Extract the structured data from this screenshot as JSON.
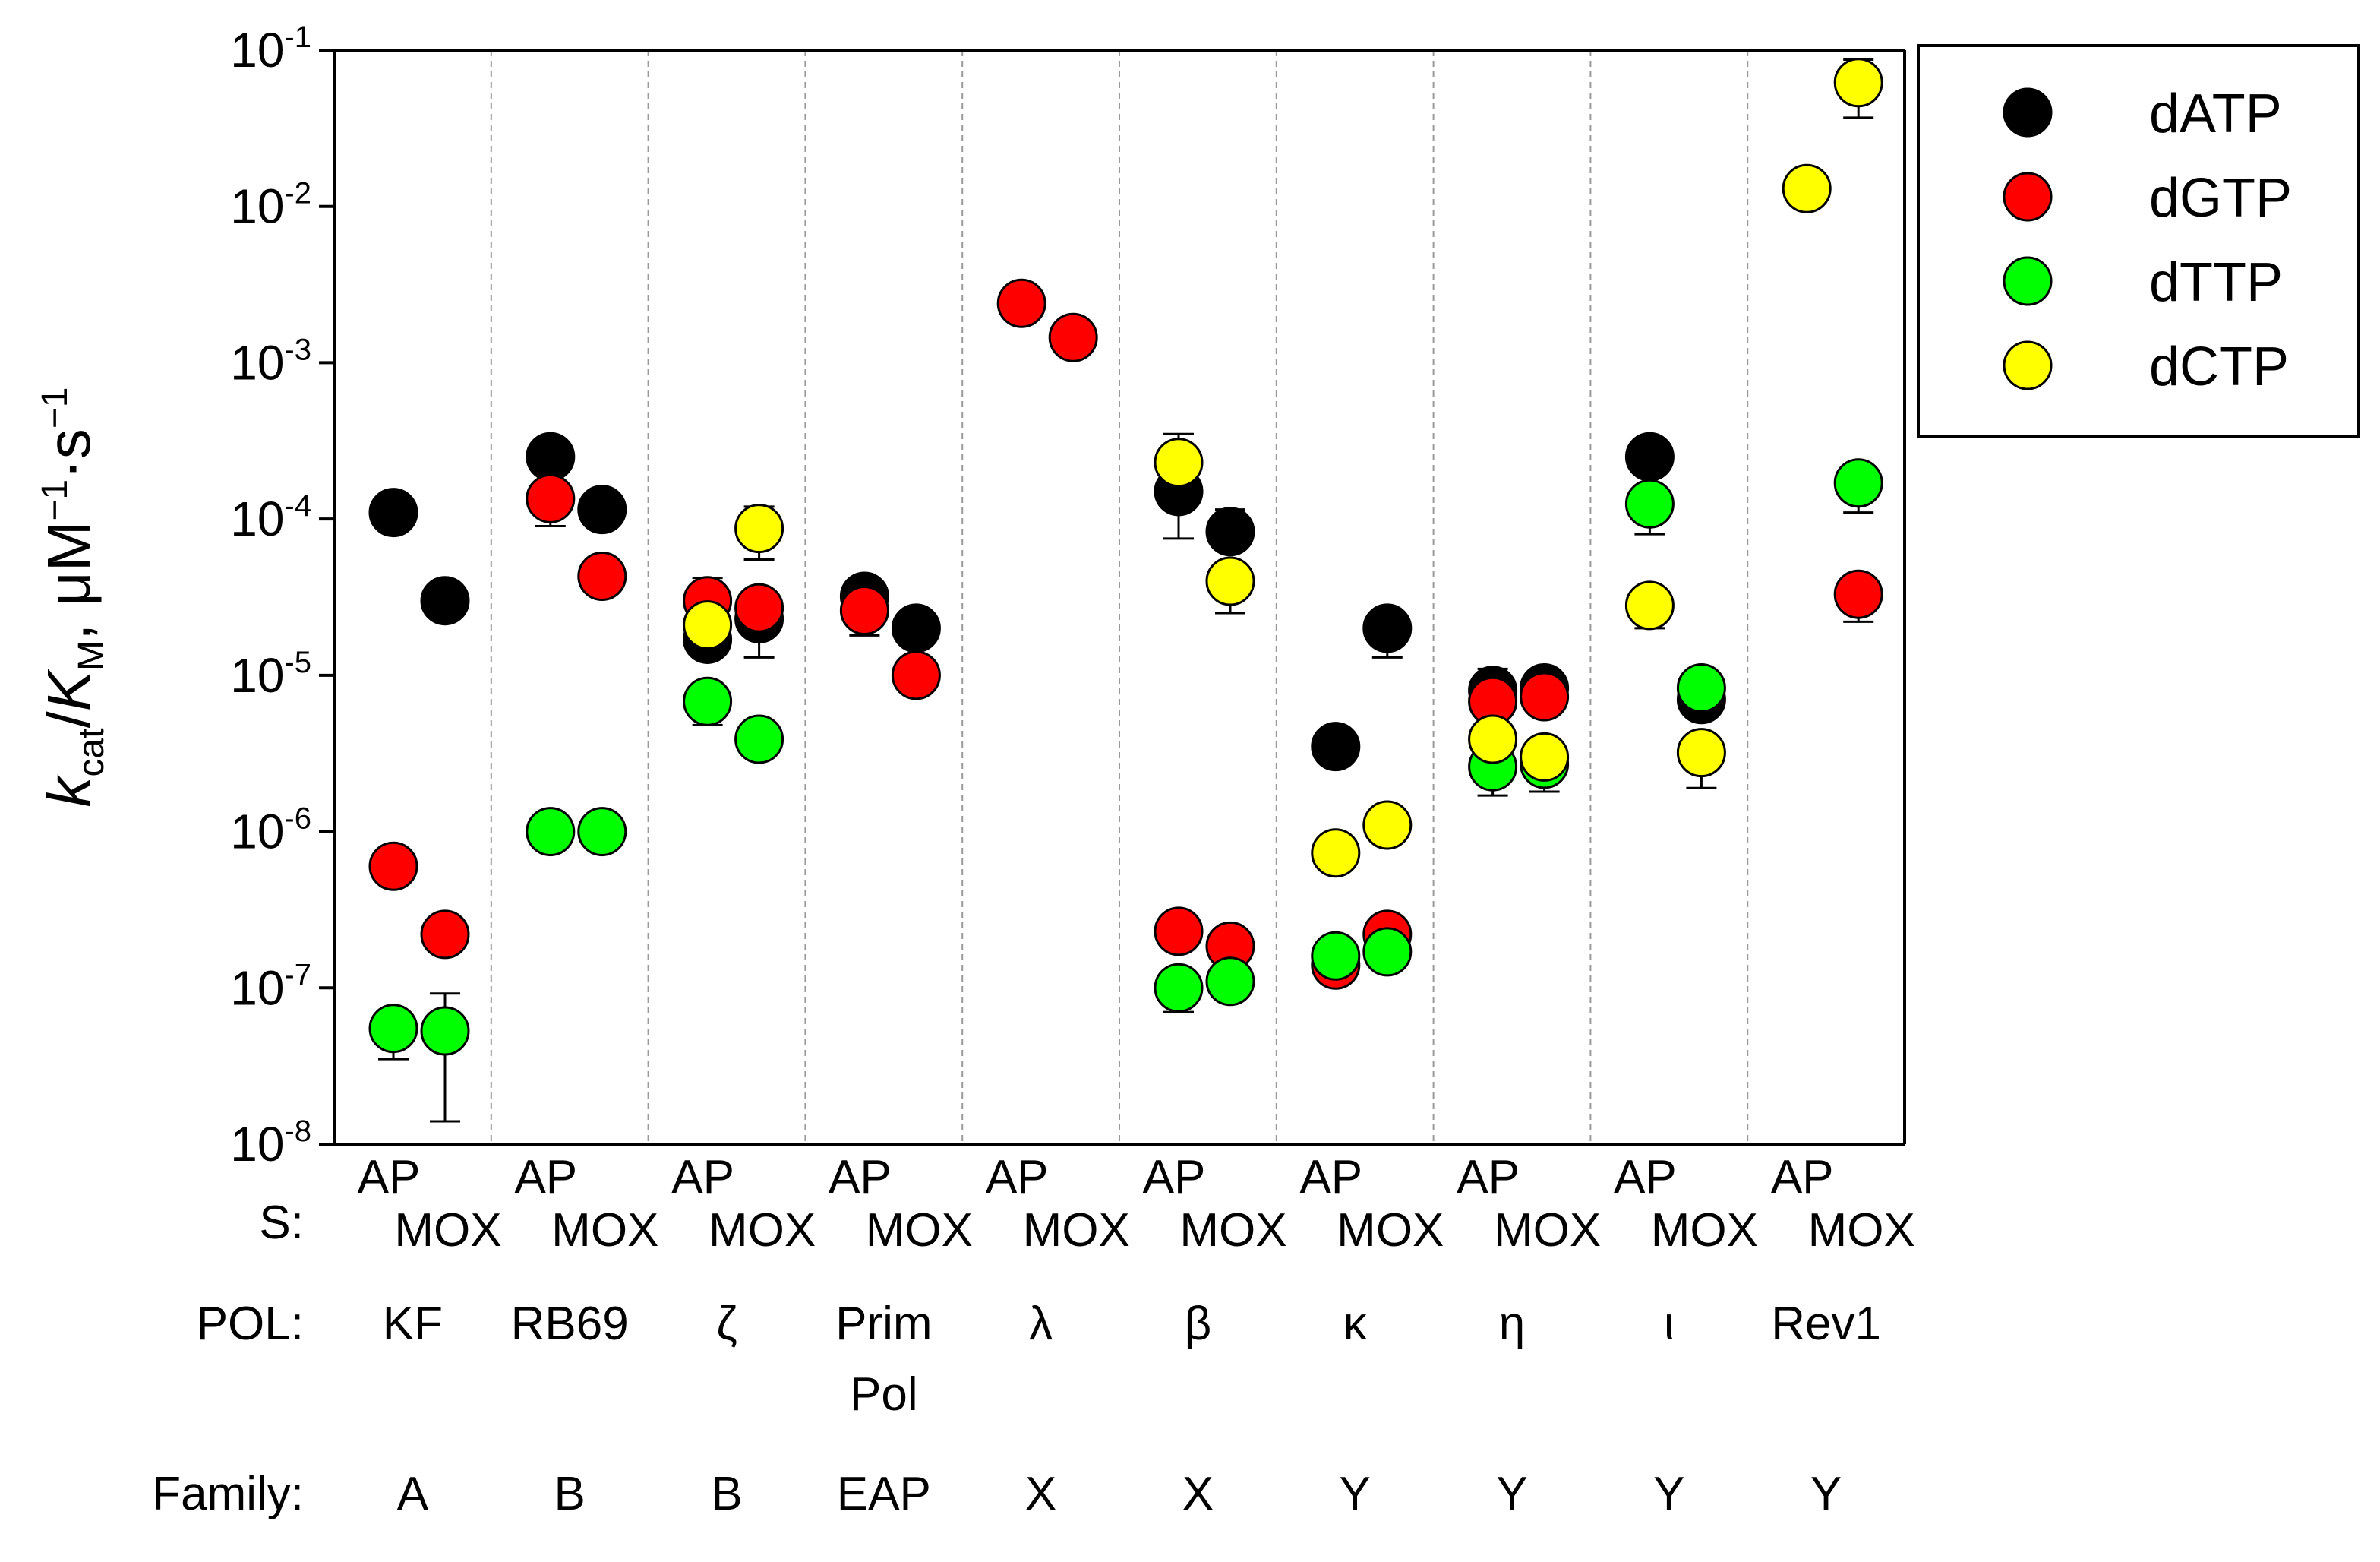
{
  "chart_data": {
    "type": "scatter",
    "yscale": "log",
    "ylim_exponents": [
      -8,
      -1
    ],
    "y_ticks": [
      {
        "base": "10",
        "exp": "-1"
      },
      {
        "base": "10",
        "exp": "-2"
      },
      {
        "base": "10",
        "exp": "-3"
      },
      {
        "base": "10",
        "exp": "-4"
      },
      {
        "base": "10",
        "exp": "-5"
      },
      {
        "base": "10",
        "exp": "-6"
      },
      {
        "base": "10",
        "exp": "-7"
      },
      {
        "base": "10",
        "exp": "-8"
      }
    ],
    "ylabel": {
      "k": "k",
      "k_sub": "cat",
      "slash": "/",
      "K": "K",
      "K_sub": "M",
      "units_prefix": ", μM",
      "exp1": "−1",
      "dot_s": "·s",
      "exp2": "−1"
    },
    "row_labels": {
      "s": "S:",
      "pol": "POL:",
      "family": "Family:"
    },
    "groups": [
      {
        "pol": "KF",
        "pol_line2": "",
        "family": "A",
        "ap": "AP",
        "mox": "MOX"
      },
      {
        "pol": "RB69",
        "pol_line2": "",
        "family": "B",
        "ap": "AP",
        "mox": "MOX"
      },
      {
        "pol": "ζ",
        "pol_line2": "",
        "family": "B",
        "ap": "AP",
        "mox": "MOX"
      },
      {
        "pol": "Prim",
        "pol_line2": "Pol",
        "family": "EAP",
        "ap": "AP",
        "mox": "MOX"
      },
      {
        "pol": "λ",
        "pol_line2": "",
        "family": "X",
        "ap": "AP",
        "mox": "MOX"
      },
      {
        "pol": "β",
        "pol_line2": "",
        "family": "X",
        "ap": "AP",
        "mox": "MOX"
      },
      {
        "pol": "κ",
        "pol_line2": "",
        "family": "Y",
        "ap": "AP",
        "mox": "MOX"
      },
      {
        "pol": "η",
        "pol_line2": "",
        "family": "Y",
        "ap": "AP",
        "mox": "MOX"
      },
      {
        "pol": "ι",
        "pol_line2": "",
        "family": "Y",
        "ap": "AP",
        "mox": "MOX"
      },
      {
        "pol": "Rev1",
        "pol_line2": "",
        "family": "Y",
        "ap": "AP",
        "mox": "MOX"
      }
    ],
    "legend": [
      {
        "name": "dATP",
        "color": "#000000"
      },
      {
        "name": "dGTP",
        "color": "#ff0000"
      },
      {
        "name": "dTTP",
        "color": "#00ff00"
      },
      {
        "name": "dCTP",
        "color": "#ffff00"
      }
    ],
    "series": [
      {
        "name": "dATP",
        "color": "#000000",
        "points": [
          {
            "group": 0,
            "substrate": "AP",
            "value": 0.00011,
            "err_low": 0.0001
          },
          {
            "group": 0,
            "substrate": "MOX",
            "value": 3e-05
          },
          {
            "group": 1,
            "substrate": "AP",
            "value": 0.00025
          },
          {
            "group": 1,
            "substrate": "MOX",
            "value": 0.000115
          },
          {
            "group": 2,
            "substrate": "AP",
            "value": 1.7e-05,
            "err_low": 1.3e-05
          },
          {
            "group": 2,
            "substrate": "MOX",
            "value": 2.3e-05
          },
          {
            "group": 3,
            "substrate": "AP",
            "value": 3.2e-05
          },
          {
            "group": 3,
            "substrate": "MOX",
            "value": 2e-05
          },
          {
            "group": 5,
            "substrate": "AP",
            "value": 0.00015,
            "err_low": 7.5e-05
          },
          {
            "group": 5,
            "substrate": "MOX",
            "value": 8.3e-05,
            "err_high": 0.000115
          },
          {
            "group": 6,
            "substrate": "AP",
            "value": 3.5e-06
          },
          {
            "group": 6,
            "substrate": "MOX",
            "value": 2e-05,
            "err_low": 1.3e-05
          },
          {
            "group": 7,
            "substrate": "AP",
            "value": 8e-06,
            "err_high": 1.1e-05
          },
          {
            "group": 7,
            "substrate": "MOX",
            "value": 8.3e-06
          },
          {
            "group": 8,
            "substrate": "AP",
            "value": 0.00025
          },
          {
            "group": 8,
            "substrate": "MOX",
            "value": 7e-06
          }
        ]
      },
      {
        "name": "dGTP",
        "color": "#ff0000",
        "points": [
          {
            "group": 0,
            "substrate": "AP",
            "value": 6e-07
          },
          {
            "group": 0,
            "substrate": "MOX",
            "value": 2.2e-07
          },
          {
            "group": 1,
            "substrate": "AP",
            "value": 0.000135,
            "err_low": 9e-05
          },
          {
            "group": 1,
            "substrate": "MOX",
            "value": 4.3e-05
          },
          {
            "group": 2,
            "substrate": "AP",
            "value": 3e-05,
            "err_high": 4.2e-05
          },
          {
            "group": 2,
            "substrate": "MOX",
            "value": 2.7e-05,
            "err_low": 1.3e-05
          },
          {
            "group": 3,
            "substrate": "AP",
            "value": 2.6e-05,
            "err_low": 1.8e-05
          },
          {
            "group": 3,
            "substrate": "MOX",
            "value": 1e-05
          },
          {
            "group": 4,
            "substrate": "AP",
            "value": 0.0024
          },
          {
            "group": 4,
            "substrate": "MOX",
            "value": 0.00145
          },
          {
            "group": 5,
            "substrate": "AP",
            "value": 2.3e-07
          },
          {
            "group": 5,
            "substrate": "MOX",
            "value": 1.85e-07
          },
          {
            "group": 6,
            "substrate": "AP",
            "value": 1.4e-07
          },
          {
            "group": 6,
            "substrate": "MOX",
            "value": 2.2e-07
          },
          {
            "group": 7,
            "substrate": "AP",
            "value": 6.8e-06
          },
          {
            "group": 7,
            "substrate": "MOX",
            "value": 7.3e-06
          },
          {
            "group": 9,
            "substrate": "MOX",
            "value": 3.3e-05,
            "err_low": 2.2e-05
          }
        ]
      },
      {
        "name": "dTTP",
        "color": "#00ff00",
        "points": [
          {
            "group": 0,
            "substrate": "AP",
            "value": 5.5e-08,
            "err_low": 3.5e-08
          },
          {
            "group": 0,
            "substrate": "MOX",
            "value": 5.3e-08,
            "err_low": 1.4e-08,
            "err_high": 9.2e-08
          },
          {
            "group": 1,
            "substrate": "AP",
            "value": 1e-06
          },
          {
            "group": 1,
            "substrate": "MOX",
            "value": 1e-06
          },
          {
            "group": 2,
            "substrate": "AP",
            "value": 6.8e-06,
            "err_low": 4.8e-06
          },
          {
            "group": 2,
            "substrate": "MOX",
            "value": 3.9e-06
          },
          {
            "group": 5,
            "substrate": "AP",
            "value": 1e-07,
            "err_low": 7e-08
          },
          {
            "group": 5,
            "substrate": "MOX",
            "value": 1.1e-07
          },
          {
            "group": 6,
            "substrate": "AP",
            "value": 1.6e-07
          },
          {
            "group": 6,
            "substrate": "MOX",
            "value": 1.7e-07
          },
          {
            "group": 7,
            "substrate": "AP",
            "value": 2.6e-06,
            "err_low": 1.7e-06
          },
          {
            "group": 7,
            "substrate": "MOX",
            "value": 2.7e-06,
            "err_low": 1.8e-06
          },
          {
            "group": 8,
            "substrate": "AP",
            "value": 0.000125,
            "err_low": 8e-05
          },
          {
            "group": 8,
            "substrate": "MOX",
            "value": 8.3e-06
          },
          {
            "group": 9,
            "substrate": "MOX",
            "value": 0.00017,
            "err_low": 0.00011
          }
        ]
      },
      {
        "name": "dCTP",
        "color": "#ffff00",
        "points": [
          {
            "group": 2,
            "substrate": "AP",
            "value": 2.1e-05
          },
          {
            "group": 2,
            "substrate": "MOX",
            "value": 8.7e-05,
            "err_high": 0.00012,
            "err_low": 5.5e-05
          },
          {
            "group": 5,
            "substrate": "AP",
            "value": 0.00023,
            "err_high": 0.00035
          },
          {
            "group": 5,
            "substrate": "MOX",
            "value": 4e-05,
            "err_low": 2.5e-05
          },
          {
            "group": 6,
            "substrate": "AP",
            "value": 7.3e-07
          },
          {
            "group": 6,
            "substrate": "MOX",
            "value": 1.1e-06
          },
          {
            "group": 7,
            "substrate": "AP",
            "value": 3.9e-06
          },
          {
            "group": 7,
            "substrate": "MOX",
            "value": 3e-06
          },
          {
            "group": 8,
            "substrate": "AP",
            "value": 2.8e-05,
            "err_low": 2e-05
          },
          {
            "group": 8,
            "substrate": "MOX",
            "value": 3.2e-06,
            "err_low": 1.9e-06
          },
          {
            "group": 9,
            "substrate": "AP",
            "value": 0.013
          },
          {
            "group": 9,
            "substrate": "MOX",
            "value": 0.062,
            "err_high": 0.087,
            "err_low": 0.037
          }
        ]
      }
    ]
  }
}
